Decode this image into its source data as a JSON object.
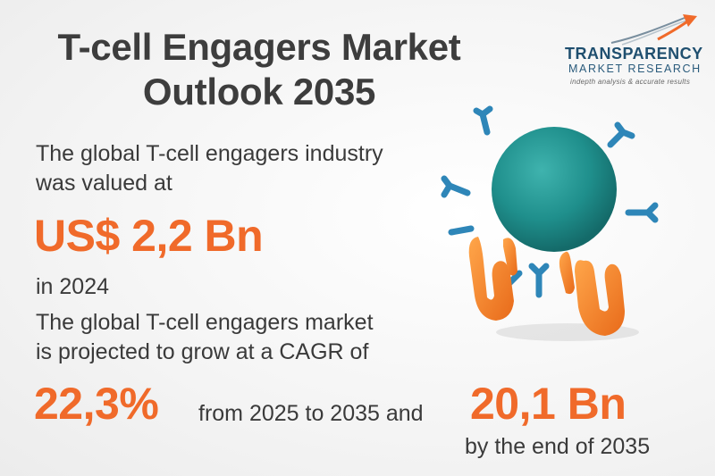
{
  "title_line1": "T-cell Engagers Market",
  "title_line2": "Outlook 2035",
  "logo": {
    "name": "TRANSPARENCY",
    "subtitle": "MARKET RESEARCH",
    "tagline": "indepth analysis & accurate results",
    "icon": "arrow-swoosh-icon"
  },
  "valued_text_line1": "The global T-cell engagers industry",
  "valued_text_line2": "was valued at",
  "value_2024": "US$ 2,2 Bn",
  "year_text": "in 2024",
  "projection_line1": "The global T-cell engagers market",
  "projection_line2": "is projected to grow at a CAGR of",
  "cagr": "22,3%",
  "period_text": "from 2025 to 2035 and",
  "value_2035": "20,1 Bn",
  "end_text": "by the end of 2035",
  "colors": {
    "accent": "#f06a2a",
    "text": "#3c3c3c",
    "sphere": "#1f8f8c",
    "antibody_blue": "#2e86b8",
    "antibody_orange": "#f08a2c"
  }
}
